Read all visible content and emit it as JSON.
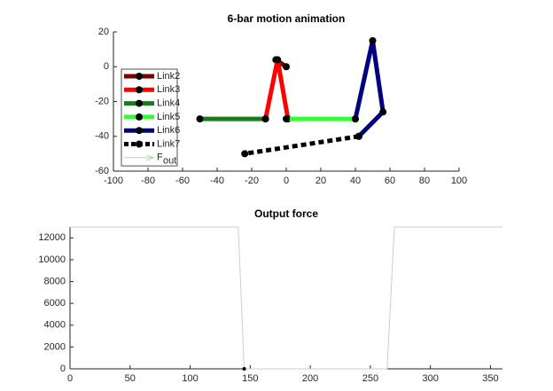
{
  "chart_data": [
    {
      "type": "line",
      "title": "6-bar motion animation",
      "xlim": [
        -100,
        100
      ],
      "ylim": [
        -60,
        20
      ],
      "xticks": [
        -100,
        -80,
        -60,
        -40,
        -20,
        0,
        20,
        40,
        60,
        80,
        100
      ],
      "yticks": [
        -60,
        -40,
        -20,
        0,
        20
      ],
      "legend": "upper left",
      "series": [
        {
          "name": "Link2",
          "color": "#7a0000",
          "linewidth": 5,
          "markers": true,
          "x": [
            -6,
            0
          ],
          "values": [
            4,
            0
          ]
        },
        {
          "name": "Link3",
          "color": "#ff0000",
          "linewidth": 5,
          "markers": true,
          "x": [
            -12,
            -5,
            1
          ],
          "values": [
            -30,
            4,
            -30
          ]
        },
        {
          "name": "Link4",
          "color": "#1b7a1b",
          "linewidth": 5,
          "markers": true,
          "x": [
            -50,
            -12
          ],
          "values": [
            -30,
            -30
          ]
        },
        {
          "name": "Link5",
          "color": "#33ff33",
          "linewidth": 5,
          "markers": true,
          "x": [
            0,
            40
          ],
          "values": [
            -30,
            -30
          ]
        },
        {
          "name": "Link6",
          "color": "#00007f",
          "linewidth": 5,
          "markers": true,
          "x": [
            40,
            50,
            56,
            42
          ],
          "values": [
            -30,
            15,
            -26,
            -40
          ]
        },
        {
          "name": "Link7",
          "color": "#000000",
          "linewidth": 5,
          "markers": true,
          "dash": true,
          "x": [
            42,
            -24
          ],
          "values": [
            -40,
            -50
          ]
        },
        {
          "name": "F",
          "name_subscript": "out",
          "color": "#99e699",
          "linewidth": 1,
          "arrow": true,
          "x": [],
          "values": []
        }
      ]
    },
    {
      "type": "line",
      "title": "Output force",
      "xlim": [
        0,
        360
      ],
      "ylim": [
        0,
        13000
      ],
      "xticks": [
        0,
        50,
        100,
        150,
        200,
        250,
        300,
        350
      ],
      "yticks": [
        0,
        2000,
        4000,
        6000,
        8000,
        10000,
        12000
      ],
      "series": [
        {
          "color": "#cccccc",
          "linewidth": 1,
          "x": [
            0,
            140,
            145,
            264,
            270,
            360
          ],
          "values": [
            13000,
            13000,
            0,
            0,
            13000,
            13000
          ]
        }
      ],
      "point": {
        "x": 145,
        "y": 0,
        "color": "#000000"
      }
    }
  ]
}
